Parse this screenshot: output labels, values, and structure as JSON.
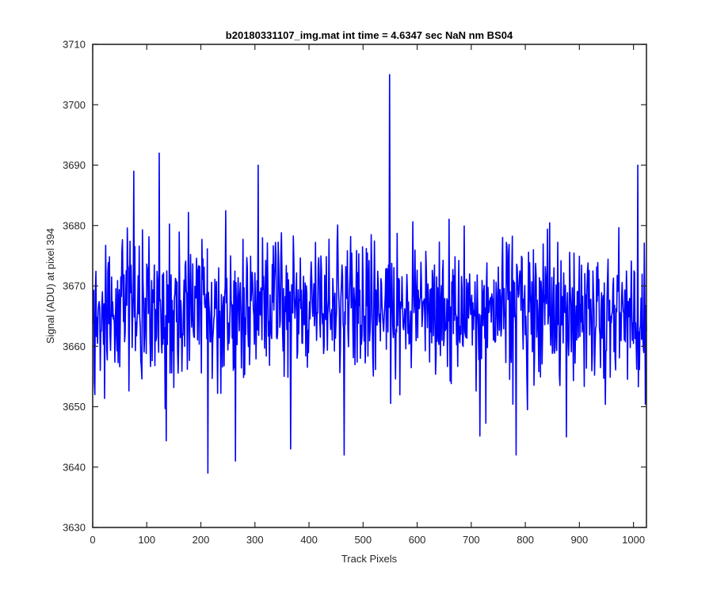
{
  "chart_data": {
    "type": "line",
    "title": "b20180331107_img.mat int time = 4.6347 sec  NaN nm BS04",
    "xlabel": "Track Pixels",
    "ylabel": "Signal (ADU) at pixel 394",
    "xlim": [
      0,
      1024
    ],
    "ylim": [
      3630,
      3710
    ],
    "xticks": [
      0,
      100,
      200,
      300,
      400,
      500,
      600,
      700,
      800,
      900,
      1000
    ],
    "yticks": [
      3630,
      3640,
      3650,
      3660,
      3670,
      3680,
      3690,
      3700,
      3710
    ],
    "xtick_labels": [
      "0",
      "100",
      "200",
      "300",
      "400",
      "500",
      "600",
      "700",
      "800",
      "900",
      "1000"
    ],
    "ytick_labels": [
      "3630",
      "3640",
      "3650",
      "3660",
      "3670",
      "3680",
      "3690",
      "3700",
      "3710"
    ],
    "grid": false,
    "line_color": "#0000ff",
    "axes_color": "#262626",
    "series": [
      {
        "name": "",
        "noise_model": {
          "n_points": 1024,
          "mean": 3666,
          "std": 6,
          "min_observed": 3639,
          "max_observed": 3705
        },
        "notable_points": [
          {
            "x": 3,
            "y": 3652
          },
          {
            "x": 75,
            "y": 3689
          },
          {
            "x": 122,
            "y": 3692
          },
          {
            "x": 212,
            "y": 3639
          },
          {
            "x": 263,
            "y": 3641
          },
          {
            "x": 305,
            "y": 3690
          },
          {
            "x": 365,
            "y": 3643
          },
          {
            "x": 464,
            "y": 3642
          },
          {
            "x": 548,
            "y": 3705
          },
          {
            "x": 782,
            "y": 3642
          },
          {
            "x": 875,
            "y": 3645
          },
          {
            "x": 1007,
            "y": 3690
          }
        ]
      }
    ]
  }
}
